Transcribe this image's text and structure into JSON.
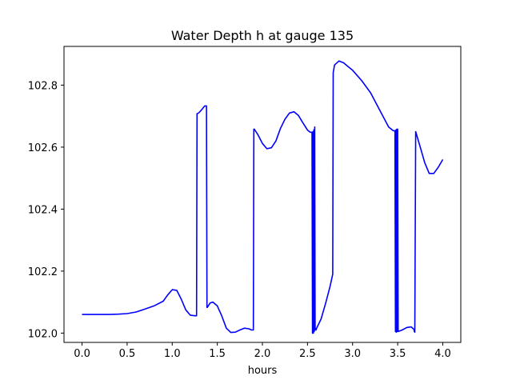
{
  "chart_data": {
    "type": "line",
    "title": "Water Depth h at gauge 135",
    "xlabel": "hours",
    "ylabel": "",
    "xlim": [
      -0.2,
      4.2
    ],
    "ylim": [
      101.97,
      102.925
    ],
    "xticks": [
      0.0,
      0.5,
      1.0,
      1.5,
      2.0,
      2.5,
      3.0,
      3.5,
      4.0
    ],
    "xtick_labels": [
      "0.0",
      "0.5",
      "1.0",
      "1.5",
      "2.0",
      "2.5",
      "3.0",
      "3.5",
      "4.0"
    ],
    "yticks": [
      102.0,
      102.2,
      102.4,
      102.6,
      102.8
    ],
    "ytick_labels": [
      "102.0",
      "102.2",
      "102.4",
      "102.6",
      "102.8"
    ],
    "grid": false,
    "series": [
      {
        "color": "#0000ff",
        "x": [
          0.0,
          0.1,
          0.2,
          0.3,
          0.4,
          0.5,
          0.6,
          0.7,
          0.8,
          0.9,
          0.95,
          1.0,
          1.05,
          1.1,
          1.15,
          1.2,
          1.25,
          1.27,
          1.275,
          1.28,
          1.3,
          1.33,
          1.36,
          1.38,
          1.385,
          1.39,
          1.42,
          1.45,
          1.5,
          1.55,
          1.6,
          1.65,
          1.7,
          1.75,
          1.8,
          1.85,
          1.88,
          1.9,
          1.905,
          1.91,
          1.95,
          2.0,
          2.05,
          2.1,
          2.15,
          2.2,
          2.25,
          2.3,
          2.35,
          2.4,
          2.45,
          2.5,
          2.53,
          2.55,
          2.555,
          2.56,
          2.565,
          2.57,
          2.575,
          2.58,
          2.585,
          2.59,
          2.595,
          2.6,
          2.65,
          2.7,
          2.75,
          2.78,
          2.785,
          2.8,
          2.85,
          2.9,
          2.95,
          3.0,
          3.1,
          3.2,
          3.3,
          3.4,
          3.45,
          3.47,
          3.475,
          3.48,
          3.485,
          3.49,
          3.495,
          3.5,
          3.505,
          3.55,
          3.6,
          3.65,
          3.68,
          3.685,
          3.69,
          3.7,
          3.75,
          3.8,
          3.85,
          3.9,
          3.95,
          4.0
        ],
        "y": [
          102.06,
          102.06,
          102.06,
          102.06,
          102.061,
          102.063,
          102.068,
          102.078,
          102.088,
          102.103,
          102.123,
          102.14,
          102.138,
          102.11,
          102.075,
          102.058,
          102.056,
          102.056,
          102.708,
          102.708,
          102.712,
          102.722,
          102.733,
          102.733,
          102.083,
          102.083,
          102.097,
          102.1,
          102.088,
          102.055,
          102.016,
          102.002,
          102.003,
          102.01,
          102.016,
          102.014,
          102.01,
          102.01,
          102.658,
          102.658,
          102.64,
          102.612,
          102.595,
          102.598,
          102.62,
          102.66,
          102.69,
          102.71,
          102.714,
          102.702,
          102.678,
          102.655,
          102.648,
          102.648,
          102.0,
          102.65,
          102.0,
          102.656,
          102.005,
          102.665,
          102.01,
          102.015,
          102.01,
          102.015,
          102.045,
          102.095,
          102.15,
          102.19,
          102.84,
          102.865,
          102.878,
          102.872,
          102.86,
          102.848,
          102.815,
          102.775,
          102.72,
          102.665,
          102.653,
          102.653,
          102.005,
          102.655,
          102.003,
          102.658,
          102.005,
          102.658,
          102.005,
          102.01,
          102.018,
          102.02,
          102.012,
          102.005,
          102.003,
          102.65,
          102.6,
          102.55,
          102.515,
          102.515,
          102.535,
          102.56
        ]
      }
    ]
  }
}
